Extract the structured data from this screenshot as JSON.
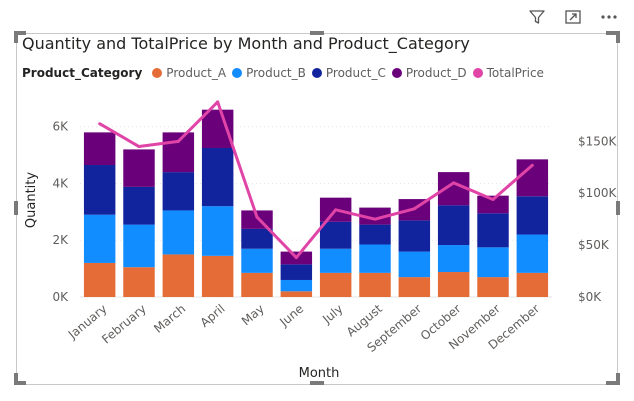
{
  "toolbar": {
    "filter_icon": "filter-icon",
    "focus_icon": "focus-mode-icon",
    "more_icon": "more-options-icon"
  },
  "chart_data": {
    "type": "bar",
    "subtype": "stacked-column-with-line",
    "title": "Quantity and TotalPrice by Month and Product_Category",
    "legend_title": "Product_Category",
    "legend_placement": "top-left",
    "xlabel": "Month",
    "ylabel": "Quantity",
    "y2label": "",
    "categories": [
      "January",
      "February",
      "March",
      "April",
      "May",
      "June",
      "July",
      "August",
      "September",
      "October",
      "November",
      "December"
    ],
    "series": [
      {
        "name": "Product_A",
        "color": "#E66C37",
        "values": [
          1200,
          1050,
          1500,
          1450,
          850,
          200,
          850,
          850,
          700,
          880,
          700,
          850
        ]
      },
      {
        "name": "Product_B",
        "color": "#118DFF",
        "values": [
          1700,
          1500,
          1550,
          1750,
          850,
          400,
          850,
          1000,
          900,
          950,
          1050,
          1350
        ]
      },
      {
        "name": "Product_C",
        "color": "#12239E",
        "values": [
          1750,
          1330,
          1350,
          2050,
          700,
          550,
          950,
          700,
          1100,
          1400,
          1200,
          1350
        ]
      },
      {
        "name": "Product_D",
        "color": "#6B007B",
        "values": [
          1150,
          1320,
          1400,
          1350,
          650,
          450,
          850,
          600,
          750,
          1170,
          620,
          1300
        ]
      }
    ],
    "line_series": {
      "name": "TotalPrice",
      "color": "#E044A7",
      "values": [
        167000,
        145000,
        150000,
        188000,
        77000,
        38000,
        84000,
        75000,
        85000,
        110000,
        94000,
        127000
      ]
    },
    "y_ticks": [
      "0K",
      "2K",
      "4K",
      "6K"
    ],
    "y_tick_values": [
      0,
      2000,
      4000,
      6000
    ],
    "y2_ticks": [
      "$0K",
      "$50K",
      "$100K",
      "$150K"
    ],
    "y2_tick_values": [
      0,
      50000,
      100000,
      150000
    ],
    "ylim": [
      0,
      6800
    ],
    "y2lim": [
      0,
      186000
    ]
  }
}
